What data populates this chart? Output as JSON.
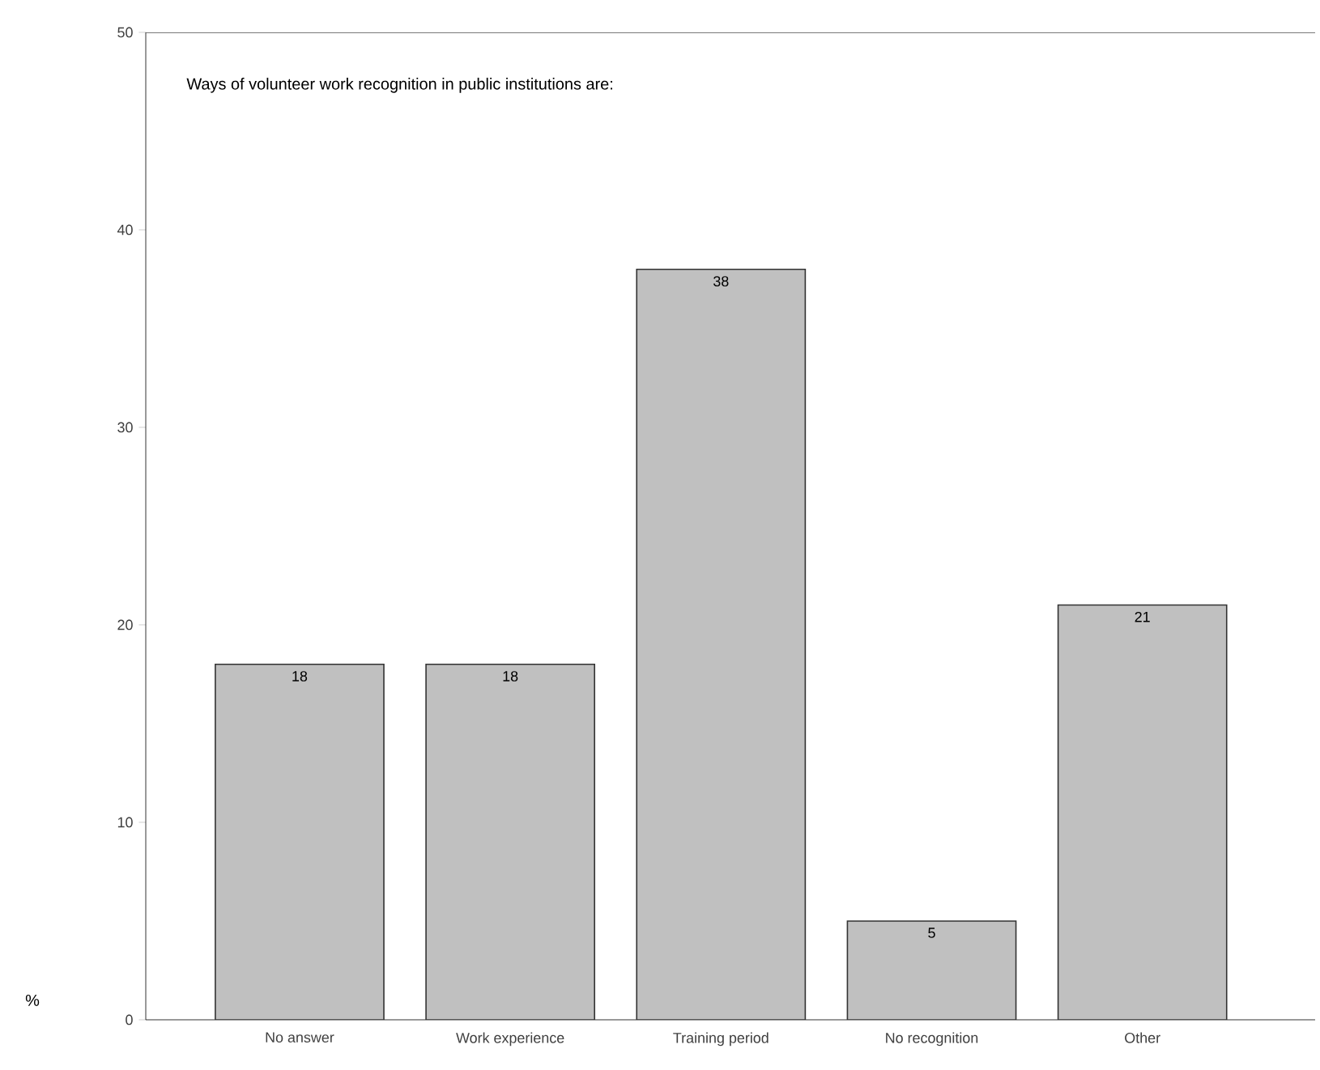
{
  "chart_data": {
    "type": "bar",
    "title": "Ways of volunteer work recognition in public institutions are:",
    "ylabel": "%",
    "categories": [
      "No answer",
      "Work experience",
      "Training period",
      "No recognition",
      "Other"
    ],
    "values": [
      18,
      18,
      38,
      5,
      21
    ],
    "color": "#c0c0c0",
    "data_labels": true,
    "ylim": [
      0,
      50
    ],
    "yticks": [
      0,
      10,
      20,
      30,
      40,
      50
    ],
    "grid": false
  }
}
